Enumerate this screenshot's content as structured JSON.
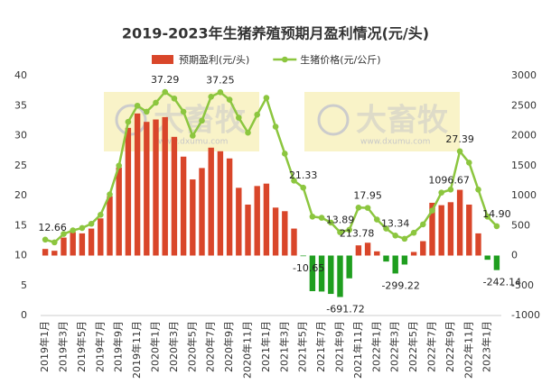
{
  "chart_data": {
    "type": "bar",
    "title": "2019-2023年生猪养殖预期月盈利情况(元/头)",
    "watermark": {
      "text": "大畜牧",
      "url": "www.dxumu.com"
    },
    "categories": [
      "2019年1月",
      null,
      "2019年3月",
      null,
      "2019年5月",
      null,
      "2019年7月",
      null,
      "2019年9月",
      null,
      "2019年11月",
      null,
      "2020年1月",
      null,
      "2020年3月",
      null,
      "2020年5月",
      null,
      "2020年7月",
      null,
      "2020年9月",
      null,
      "2020年11月",
      null,
      "2021年1月",
      null,
      "2021年3月",
      null,
      "2021年5月",
      null,
      "2021年7月",
      null,
      "2021年9月",
      null,
      "2021年11月",
      null,
      "2022年1月",
      null,
      "2022年3月",
      null,
      "2022年5月",
      null,
      "2022年7月",
      null,
      "2022年9月",
      null,
      "2022年11月",
      null,
      "2023年1月",
      null
    ],
    "series": [
      {
        "name": "预期盈利(元/头)",
        "type": "bar",
        "axis": "y2",
        "color": "#d9462a",
        "negative_color": "#1f9e1f",
        "values": [
          110,
          80,
          300,
          390,
          370,
          450,
          620,
          990,
          1470,
          2130,
          2370,
          2230,
          2270,
          2310,
          1980,
          1650,
          1270,
          1460,
          1800,
          1740,
          1620,
          1130,
          850,
          1160,
          1200,
          800,
          740,
          450,
          -10.65,
          -594,
          -600,
          -640,
          -691.72,
          -380,
          170,
          213.78,
          70,
          -100,
          -299.22,
          -150,
          60,
          240,
          880,
          840,
          890,
          1096.67,
          850,
          370,
          -70,
          -242.14
        ],
        "value_labels": [
          null,
          null,
          null,
          null,
          null,
          null,
          null,
          null,
          null,
          null,
          null,
          null,
          null,
          null,
          null,
          null,
          null,
          null,
          null,
          null,
          null,
          null,
          null,
          null,
          null,
          null,
          null,
          null,
          "-10.65",
          null,
          null,
          null,
          "-691.72",
          null,
          null,
          "213.78",
          null,
          null,
          "-299.22",
          null,
          null,
          null,
          null,
          null,
          null,
          "1096.67",
          null,
          null,
          null,
          "-242.14"
        ]
      },
      {
        "name": "生猪价格(元/公斤)",
        "type": "line",
        "axis": "y",
        "color": "#8cc63f",
        "values": [
          12.66,
          12.2,
          13.6,
          14.2,
          14.6,
          15.3,
          16.8,
          20.2,
          25.0,
          32.3,
          35.0,
          34.0,
          35.5,
          37.29,
          36.2,
          34.0,
          30.0,
          32.5,
          36.5,
          37.25,
          36.0,
          33.0,
          30.5,
          33.5,
          36.3,
          31.5,
          27.0,
          22.5,
          21.33,
          16.5,
          16.3,
          15.5,
          13.89,
          14.3,
          18.0,
          17.95,
          16.0,
          14.5,
          13.34,
          12.8,
          13.8,
          15.2,
          17.5,
          20.5,
          21.0,
          27.39,
          25.5,
          21.0,
          16.5,
          14.9
        ],
        "value_labels": [
          "12.66",
          null,
          null,
          null,
          null,
          null,
          null,
          null,
          null,
          null,
          null,
          null,
          null,
          "37.29",
          null,
          null,
          null,
          null,
          null,
          "37.25",
          null,
          null,
          null,
          null,
          null,
          null,
          null,
          null,
          "21.33",
          null,
          null,
          null,
          "13.89",
          null,
          null,
          "17.95",
          null,
          null,
          "13.34",
          null,
          null,
          null,
          null,
          null,
          null,
          "27.39",
          null,
          null,
          null,
          "14.90"
        ]
      }
    ],
    "ylim": [
      0,
      40
    ],
    "yticks": [
      0,
      5,
      10,
      15,
      20,
      25,
      30,
      35,
      40
    ],
    "y2lim": [
      -1000,
      3000
    ],
    "y2ticks": [
      -1000,
      -500,
      0,
      500,
      1000,
      1500,
      2000,
      2500,
      3000
    ],
    "grid": false,
    "legend": "top"
  }
}
